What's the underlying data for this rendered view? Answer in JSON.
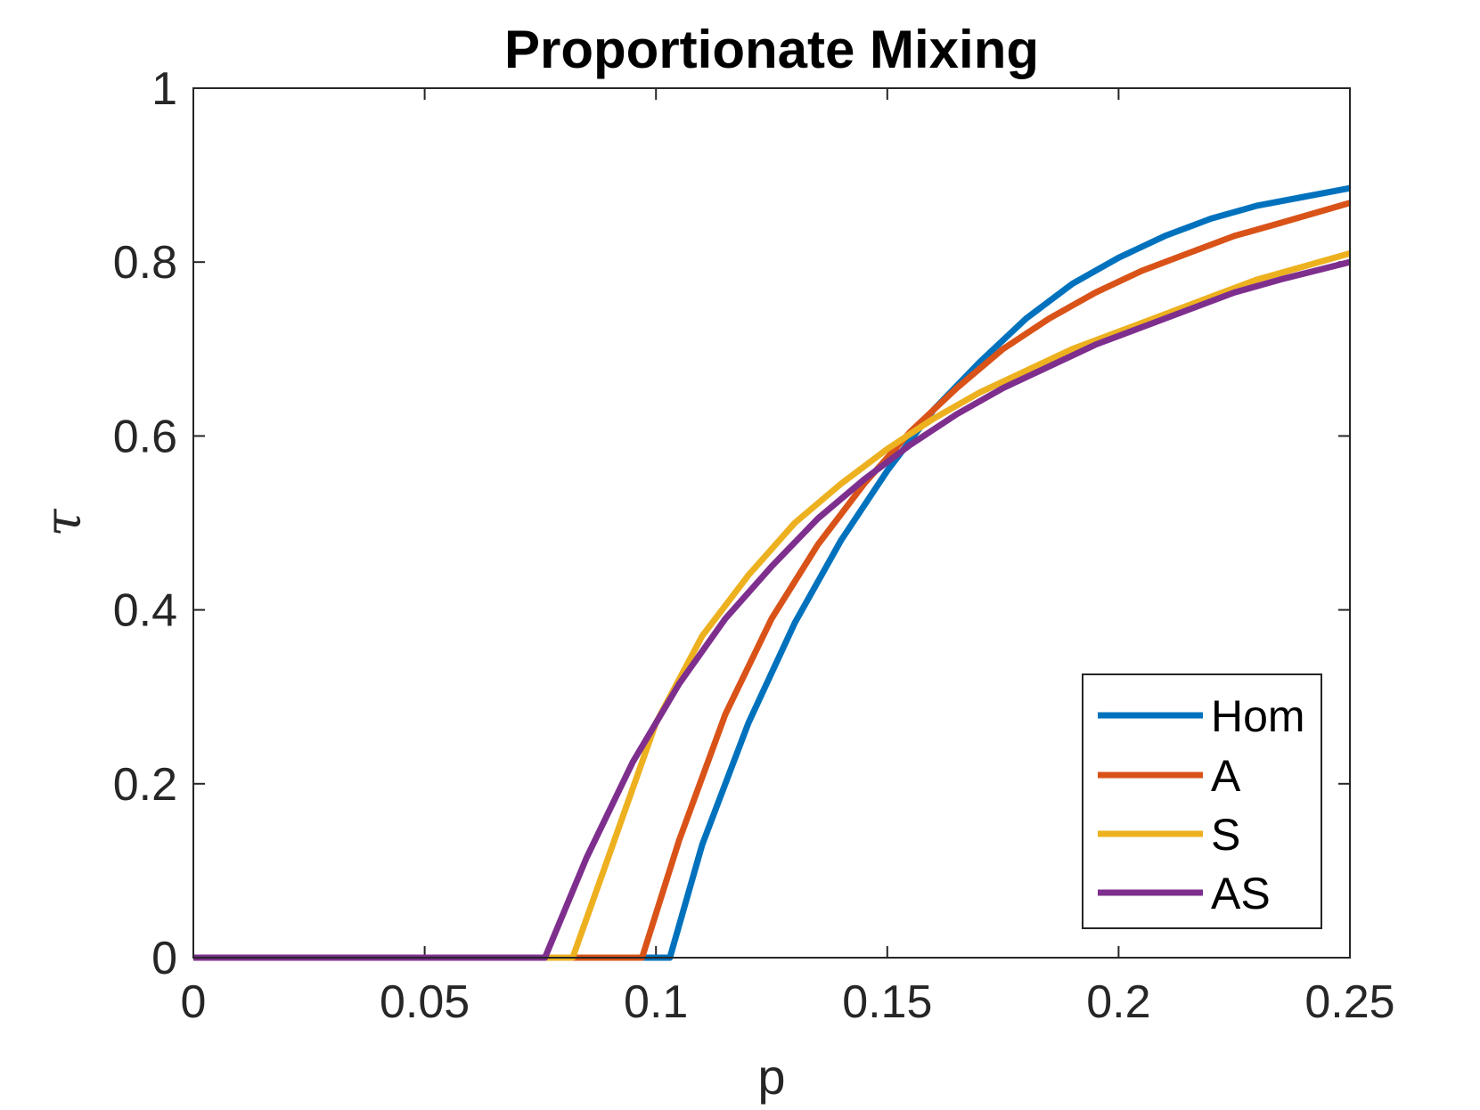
{
  "chart_data": {
    "type": "line",
    "title": "Proportionate Mixing",
    "xlabel": "p",
    "ylabel": "τ",
    "xlim": [
      0,
      0.25
    ],
    "ylim": [
      0,
      1
    ],
    "x_ticks": [
      "0",
      "0.05",
      "0.1",
      "0.15",
      "0.2",
      "0.25"
    ],
    "y_ticks": [
      "0",
      "0.2",
      "0.4",
      "0.6",
      "0.8",
      "1"
    ],
    "grid": false,
    "legend_position": "bottom-right",
    "series": [
      {
        "name": "Hom",
        "color": "#0072BD",
        "x": [
          0,
          0.103,
          0.11,
          0.12,
          0.13,
          0.14,
          0.15,
          0.16,
          0.17,
          0.18,
          0.19,
          0.2,
          0.21,
          0.22,
          0.23,
          0.24,
          0.25
        ],
        "y": [
          0,
          0,
          0.13,
          0.27,
          0.385,
          0.48,
          0.56,
          0.63,
          0.685,
          0.735,
          0.775,
          0.805,
          0.83,
          0.85,
          0.865,
          0.875,
          0.885
        ]
      },
      {
        "name": "A",
        "color": "#D95319",
        "x": [
          0,
          0.097,
          0.105,
          0.115,
          0.125,
          0.135,
          0.145,
          0.155,
          0.165,
          0.175,
          0.185,
          0.195,
          0.205,
          0.215,
          0.225,
          0.235,
          0.25
        ],
        "y": [
          0,
          0,
          0.135,
          0.28,
          0.39,
          0.475,
          0.545,
          0.605,
          0.655,
          0.7,
          0.735,
          0.765,
          0.79,
          0.81,
          0.83,
          0.845,
          0.868
        ]
      },
      {
        "name": "S",
        "color": "#EDB120",
        "x": [
          0,
          0.082,
          0.09,
          0.1,
          0.11,
          0.12,
          0.13,
          0.14,
          0.15,
          0.16,
          0.17,
          0.18,
          0.19,
          0.2,
          0.21,
          0.22,
          0.23,
          0.24,
          0.25
        ],
        "y": [
          0,
          0,
          0.12,
          0.27,
          0.37,
          0.44,
          0.5,
          0.545,
          0.585,
          0.62,
          0.65,
          0.675,
          0.7,
          0.72,
          0.74,
          0.76,
          0.78,
          0.795,
          0.81
        ]
      },
      {
        "name": "AS",
        "color": "#7E2F8E",
        "x": [
          0,
          0.076,
          0.085,
          0.095,
          0.105,
          0.115,
          0.125,
          0.135,
          0.145,
          0.155,
          0.165,
          0.175,
          0.185,
          0.195,
          0.205,
          0.215,
          0.225,
          0.235,
          0.25
        ],
        "y": [
          0,
          0,
          0.115,
          0.225,
          0.315,
          0.39,
          0.45,
          0.505,
          0.55,
          0.59,
          0.625,
          0.655,
          0.68,
          0.705,
          0.725,
          0.745,
          0.765,
          0.78,
          0.8
        ]
      }
    ]
  }
}
